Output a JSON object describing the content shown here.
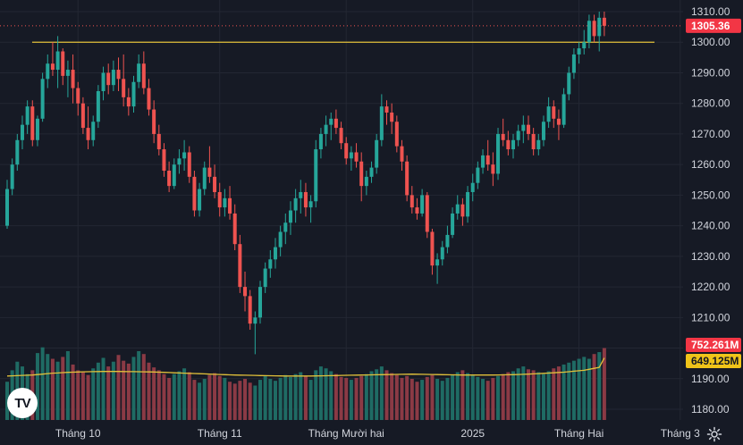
{
  "colors": {
    "background": "#161a25",
    "grid": "#232733",
    "up": "#26a69a",
    "down": "#ef5350",
    "up_volume": "#1f6b64",
    "down_volume": "#8b3a45",
    "hline": "#e2c13a",
    "ma_line": "#e2c13a",
    "text": "#d1d4dc",
    "price_badge": "#f23645",
    "ma_badge": "#f0c419"
  },
  "logo": {
    "text": "TV",
    "icon": "tradingview-logo-icon"
  },
  "settings_icon": "gear-icon",
  "chart_data": {
    "type": "candlestick",
    "price_axis": {
      "ticks": [
        "1310.00",
        "1300.00",
        "1290.00",
        "1280.00",
        "1270.00",
        "1260.00",
        "1250.00",
        "1240.00",
        "1230.00",
        "1220.00",
        "1210.00",
        "1200.00",
        "1190.00",
        "1180.00"
      ],
      "range": [
        1176.5,
        1313.8
      ]
    },
    "time_axis": {
      "labels": [
        "Tháng 10",
        "Tháng 11",
        "Tháng Mười hai",
        "2025",
        "Tháng Hai",
        "Tháng 3"
      ],
      "label_bar_index": [
        14,
        42,
        67,
        92,
        113,
        133
      ]
    },
    "current_price": {
      "label": "1305.36",
      "value": 1305.36
    },
    "horizontal_line": {
      "value": 1300
    },
    "volume_badges": {
      "volume": "752.261M",
      "ma": "649.125M"
    },
    "volume_range": [
      0,
      860
    ],
    "candles": [
      [
        1240,
        1255,
        1239,
        1252
      ],
      [
        1252,
        1262,
        1250,
        1260
      ],
      [
        1260,
        1270,
        1258,
        1268
      ],
      [
        1268,
        1276,
        1265,
        1273
      ],
      [
        1273,
        1281,
        1270,
        1279
      ],
      [
        1279,
        1281,
        1266,
        1268
      ],
      [
        1268,
        1276,
        1266,
        1275
      ],
      [
        1275,
        1290,
        1274,
        1288
      ],
      [
        1288,
        1296,
        1285,
        1293
      ],
      [
        1293,
        1300,
        1289,
        1291
      ],
      [
        1291,
        1302,
        1285,
        1297
      ],
      [
        1297,
        1298,
        1286,
        1289
      ],
      [
        1289,
        1294,
        1282,
        1291
      ],
      [
        1291,
        1296,
        1280,
        1285
      ],
      [
        1285,
        1287,
        1276,
        1280
      ],
      [
        1280,
        1282,
        1270,
        1272
      ],
      [
        1272,
        1279,
        1265,
        1268
      ],
      [
        1268,
        1276,
        1266,
        1274
      ],
      [
        1274,
        1286,
        1272,
        1284
      ],
      [
        1284,
        1292,
        1281,
        1290
      ],
      [
        1290,
        1293,
        1283,
        1286
      ],
      [
        1286,
        1294,
        1284,
        1291
      ],
      [
        1291,
        1295,
        1284,
        1288
      ],
      [
        1288,
        1296,
        1279,
        1282
      ],
      [
        1282,
        1285,
        1276,
        1279
      ],
      [
        1279,
        1289,
        1277,
        1287
      ],
      [
        1287,
        1296,
        1285,
        1293
      ],
      [
        1293,
        1297,
        1283,
        1285
      ],
      [
        1285,
        1288,
        1276,
        1278
      ],
      [
        1278,
        1281,
        1267,
        1270
      ],
      [
        1270,
        1273,
        1263,
        1265
      ],
      [
        1265,
        1267,
        1256,
        1258
      ],
      [
        1258,
        1261,
        1251,
        1253
      ],
      [
        1253,
        1262,
        1252,
        1260
      ],
      [
        1260,
        1265,
        1257,
        1262
      ],
      [
        1262,
        1268,
        1258,
        1264
      ],
      [
        1264,
        1266,
        1254,
        1256
      ],
      [
        1256,
        1258,
        1243,
        1245
      ],
      [
        1245,
        1254,
        1243,
        1252
      ],
      [
        1252,
        1261,
        1250,
        1259
      ],
      [
        1259,
        1266,
        1254,
        1256
      ],
      [
        1256,
        1260,
        1249,
        1251
      ],
      [
        1251,
        1254,
        1243,
        1246
      ],
      [
        1246,
        1252,
        1243,
        1249
      ],
      [
        1249,
        1253,
        1242,
        1244
      ],
      [
        1244,
        1247,
        1232,
        1234
      ],
      [
        1234,
        1237,
        1218,
        1220
      ],
      [
        1220,
        1225,
        1212,
        1217
      ],
      [
        1217,
        1219,
        1206,
        1208
      ],
      [
        1208,
        1212,
        1198,
        1210
      ],
      [
        1210,
        1222,
        1208,
        1220
      ],
      [
        1220,
        1228,
        1218,
        1226
      ],
      [
        1226,
        1232,
        1223,
        1229
      ],
      [
        1229,
        1236,
        1226,
        1233
      ],
      [
        1233,
        1240,
        1230,
        1238
      ],
      [
        1238,
        1244,
        1234,
        1241
      ],
      [
        1241,
        1248,
        1237,
        1245
      ],
      [
        1245,
        1252,
        1241,
        1249
      ],
      [
        1249,
        1255,
        1244,
        1251
      ],
      [
        1251,
        1254,
        1243,
        1246
      ],
      [
        1246,
        1250,
        1241,
        1248
      ],
      [
        1248,
        1268,
        1246,
        1265
      ],
      [
        1265,
        1272,
        1262,
        1270
      ],
      [
        1270,
        1276,
        1266,
        1273
      ],
      [
        1273,
        1277,
        1268,
        1275
      ],
      [
        1275,
        1278,
        1270,
        1272
      ],
      [
        1272,
        1274,
        1265,
        1267
      ],
      [
        1267,
        1269,
        1260,
        1262
      ],
      [
        1262,
        1266,
        1258,
        1264
      ],
      [
        1264,
        1267,
        1259,
        1261
      ],
      [
        1261,
        1264,
        1248,
        1253
      ],
      [
        1253,
        1258,
        1250,
        1256
      ],
      [
        1256,
        1261,
        1254,
        1259
      ],
      [
        1259,
        1270,
        1257,
        1268
      ],
      [
        1268,
        1283,
        1266,
        1279
      ],
      [
        1279,
        1281,
        1273,
        1277
      ],
      [
        1277,
        1280,
        1270,
        1274
      ],
      [
        1274,
        1276,
        1264,
        1266
      ],
      [
        1266,
        1268,
        1258,
        1261
      ],
      [
        1261,
        1263,
        1248,
        1250
      ],
      [
        1250,
        1253,
        1244,
        1246
      ],
      [
        1246,
        1249,
        1242,
        1244
      ],
      [
        1244,
        1252,
        1243,
        1250
      ],
      [
        1250,
        1251,
        1236,
        1238
      ],
      [
        1238,
        1239,
        1224,
        1227
      ],
      [
        1227,
        1231,
        1221,
        1229
      ],
      [
        1229,
        1235,
        1227,
        1233
      ],
      [
        1233,
        1240,
        1231,
        1237
      ],
      [
        1237,
        1246,
        1236,
        1244
      ],
      [
        1244,
        1250,
        1242,
        1247
      ],
      [
        1247,
        1249,
        1240,
        1243
      ],
      [
        1243,
        1253,
        1241,
        1251
      ],
      [
        1251,
        1257,
        1248,
        1254
      ],
      [
        1254,
        1261,
        1252,
        1259
      ],
      [
        1259,
        1265,
        1257,
        1263
      ],
      [
        1263,
        1268,
        1258,
        1260
      ],
      [
        1260,
        1264,
        1253,
        1257
      ],
      [
        1257,
        1272,
        1255,
        1270
      ],
      [
        1270,
        1275,
        1266,
        1268
      ],
      [
        1268,
        1271,
        1263,
        1265
      ],
      [
        1265,
        1270,
        1262,
        1268
      ],
      [
        1268,
        1273,
        1266,
        1271
      ],
      [
        1271,
        1276,
        1267,
        1273
      ],
      [
        1273,
        1276,
        1268,
        1270
      ],
      [
        1270,
        1272,
        1263,
        1265
      ],
      [
        1265,
        1270,
        1263,
        1268
      ],
      [
        1268,
        1276,
        1266,
        1274
      ],
      [
        1274,
        1282,
        1272,
        1279
      ],
      [
        1279,
        1281,
        1272,
        1275
      ],
      [
        1275,
        1278,
        1268,
        1273
      ],
      [
        1273,
        1285,
        1272,
        1283
      ],
      [
        1283,
        1292,
        1281,
        1290
      ],
      [
        1290,
        1298,
        1288,
        1296
      ],
      [
        1296,
        1300,
        1293,
        1298
      ],
      [
        1298,
        1304,
        1296,
        1300
      ],
      [
        1300,
        1309,
        1298,
        1307
      ],
      [
        1307,
        1309,
        1300,
        1302
      ],
      [
        1302,
        1310,
        1297,
        1308
      ],
      [
        1308,
        1310,
        1302,
        1305.36
      ]
    ],
    "volumes": [
      400,
      520,
      610,
      560,
      480,
      520,
      700,
      760,
      690,
      640,
      610,
      660,
      720,
      580,
      520,
      500,
      470,
      540,
      600,
      650,
      560,
      610,
      680,
      620,
      590,
      660,
      720,
      690,
      600,
      550,
      520,
      480,
      440,
      480,
      510,
      540,
      500,
      420,
      390,
      430,
      470,
      490,
      460,
      440,
      400,
      380,
      410,
      430,
      390,
      360,
      420,
      460,
      430,
      410,
      440,
      470,
      450,
      480,
      500,
      460,
      420,
      520,
      560,
      540,
      510,
      480,
      450,
      440,
      420,
      440,
      460,
      480,
      510,
      530,
      560,
      520,
      490,
      470,
      440,
      460,
      430,
      400,
      420,
      450,
      470,
      430,
      410,
      440,
      470,
      500,
      520,
      490,
      470,
      450,
      430,
      410,
      440,
      460,
      480,
      500,
      510,
      540,
      560,
      530,
      520,
      500,
      480,
      510,
      540,
      560,
      580,
      600,
      620,
      640,
      660,
      640,
      690,
      710,
      752.261
    ],
    "volume_ma": [
      460,
      462,
      464,
      466,
      468,
      470,
      475,
      480,
      485,
      490,
      492,
      495,
      498,
      500,
      502,
      504,
      505,
      506,
      507,
      508,
      508,
      508,
      508,
      507,
      506,
      506,
      505,
      504,
      503,
      502,
      500,
      498,
      496,
      494,
      492,
      490,
      488,
      486,
      484,
      482,
      480,
      478,
      476,
      474,
      472,
      470,
      469,
      468,
      467,
      466,
      465,
      464,
      463,
      462,
      461,
      460,
      460,
      460,
      460,
      460,
      460,
      461,
      462,
      463,
      464,
      465,
      466,
      467,
      468,
      469,
      470,
      471,
      472,
      473,
      474,
      475,
      476,
      477,
      478,
      479,
      480,
      479,
      478,
      477,
      476,
      475,
      474,
      473,
      472,
      471,
      470,
      470,
      470,
      470,
      470,
      470,
      470,
      471,
      472,
      473,
      474,
      476,
      478,
      480,
      482,
      485,
      488,
      491,
      494,
      497,
      500,
      505,
      510,
      515,
      520,
      530,
      540,
      550,
      649.125
    ]
  }
}
